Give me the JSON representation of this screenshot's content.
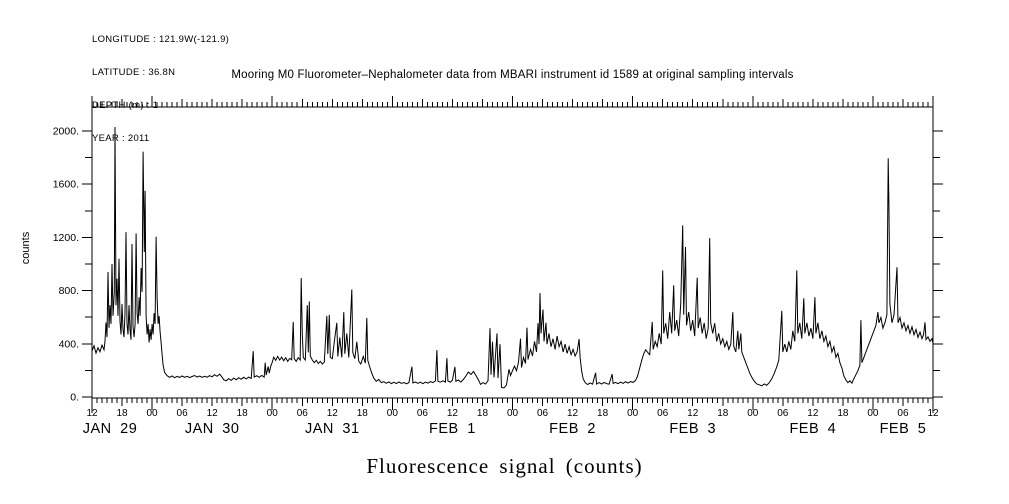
{
  "page": {
    "background": "#ffffff",
    "line_color": "#000000"
  },
  "info_block": {
    "lines": [
      "LONGITUDE : 121.9W(-121.9)",
      "LATITUDE : 36.8N",
      "DEPTH (m) : 1",
      "YEAR : 2011"
    ]
  },
  "title": "Mooring M0 Fluorometer–Nephalometer data from MBARI instrument id 1589 at original sampling intervals",
  "chart_data": {
    "type": "line",
    "title": "Mooring M0 Fluorometer–Nephalometer data from MBARI instrument id 1589 at original sampling intervals",
    "ylabel": "counts",
    "xlabel": "Fluorescence signal (counts)",
    "grid": false,
    "x_axis": {
      "start": "JAN 29 12:00",
      "end": "FEB 5 12:00",
      "hours_range": [
        0,
        168
      ],
      "minor_tick_step_hours": 1,
      "labeled_tick_step_hours": 6,
      "hour_tick_labels": [
        "12",
        "18",
        "00",
        "06",
        "12",
        "18",
        "00",
        "06",
        "12",
        "18",
        "00",
        "06",
        "12",
        "18",
        "00",
        "06",
        "12",
        "18",
        "00",
        "06",
        "12",
        "18",
        "00",
        "06",
        "12",
        "18",
        "00",
        "06",
        "12"
      ],
      "day_labels": [
        {
          "label": "JAN 29",
          "center_hour": 3.6
        },
        {
          "label": "JAN 30",
          "center_hour": 24
        },
        {
          "label": "JAN 31",
          "center_hour": 48
        },
        {
          "label": "FEB 1",
          "center_hour": 72
        },
        {
          "label": "FEB 2",
          "center_hour": 96
        },
        {
          "label": "FEB 3",
          "center_hour": 120
        },
        {
          "label": "FEB 4",
          "center_hour": 144
        },
        {
          "label": "FEB 5",
          "center_hour": 162
        }
      ]
    },
    "y_axis": {
      "min": 0,
      "max": 2180,
      "labeled_ticks": [
        0,
        400,
        800,
        1200,
        1600,
        2000
      ],
      "minor_tick_step": 200,
      "tick_label_suffix": "."
    },
    "series": [
      {
        "name": "fluorescence_counts",
        "color": "#000000",
        "points_hour_value": [
          0,
          345,
          0.4,
          385,
          0.8,
          330,
          1.2,
          370,
          1.6,
          340,
          2,
          390,
          2.4,
          355,
          2.6,
          420,
          2.8,
          560,
          3,
          450,
          3.2,
          940,
          3.4,
          520,
          3.6,
          690,
          3.8,
          550,
          4,
          1000,
          4.2,
          610,
          4.45,
          790,
          4.6,
          2030,
          4.8,
          690,
          5,
          890,
          5.2,
          610,
          5.4,
          1040,
          5.6,
          570,
          5.8,
          470,
          6,
          700,
          6.2,
          510,
          6.4,
          450,
          6.6,
          630,
          6.8,
          1240,
          7,
          550,
          7.2,
          470,
          7.4,
          690,
          7.6,
          510,
          7.8,
          430,
          8,
          1150,
          8.2,
          530,
          8.4,
          450,
          8.6,
          550,
          8.8,
          1230,
          9,
          630,
          9.2,
          550,
          9.4,
          750,
          9.6,
          610,
          9.8,
          970,
          10,
          790,
          10.2,
          1845,
          10.45,
          1090,
          10.6,
          1550,
          10.8,
          610,
          11,
          470,
          11.2,
          550,
          11.4,
          410,
          11.6,
          510,
          11.8,
          430,
          12,
          550,
          12.2,
          470,
          12.4,
          630,
          12.6,
          550,
          12.8,
          1205,
          13,
          750,
          13.2,
          550,
          13.4,
          610,
          13.6,
          490,
          13.8,
          410,
          14,
          320,
          14.2,
          240,
          14.5,
          185,
          15,
          160,
          15.5,
          148,
          16,
          158,
          16.5,
          145,
          17,
          155,
          17.5,
          147,
          18,
          158,
          18.5,
          148,
          19,
          156,
          19.5,
          146,
          20,
          154,
          20.5,
          162,
          21,
          150,
          21.5,
          158,
          22,
          148,
          22.5,
          156,
          23,
          149,
          23.5,
          160,
          24,
          152,
          24.5,
          168,
          25,
          156,
          25.5,
          172,
          26,
          148,
          26.3,
          130,
          26.8,
          122,
          27.3,
          138,
          27.8,
          125,
          28.3,
          142,
          28.8,
          130,
          29.3,
          145,
          29.8,
          133,
          30.3,
          148,
          30.8,
          136,
          31.3,
          150,
          31.8,
          140,
          32.2,
          345,
          32.4,
          150,
          32.9,
          160,
          33.4,
          148,
          33.9,
          162,
          34.4,
          150,
          34.6,
          258,
          34.8,
          165,
          35.2,
          230,
          35.4,
          180,
          35.7,
          230,
          36,
          260,
          36.3,
          300,
          36.7,
          275,
          37.1,
          305,
          37.5,
          278,
          37.9,
          300,
          38.3,
          272,
          38.7,
          296,
          39.1,
          268,
          39.5,
          290,
          39.9,
          280,
          40.2,
          565,
          40.4,
          288,
          40.8,
          268,
          41.2,
          296,
          41.6,
          278,
          41.8,
          895,
          42,
          470,
          42.2,
          298,
          42.6,
          278,
          43,
          690,
          43.2,
          335,
          43.4,
          718,
          43.6,
          308,
          44,
          278,
          44.4,
          258,
          44.8,
          276,
          45.2,
          252,
          45.6,
          268,
          46,
          248,
          46.4,
          262,
          46.9,
          610,
          47.1,
          325,
          47.4,
          618,
          47.6,
          298,
          48,
          288,
          48.4,
          415,
          48.9,
          558,
          49.1,
          305,
          49.5,
          448,
          49.9,
          298,
          50.3,
          638,
          50.5,
          325,
          50.9,
          478,
          51.3,
          298,
          51.9,
          808,
          52.1,
          335,
          52.5,
          288,
          52.9,
          415,
          53.3,
          268,
          53.7,
          248,
          54.2,
          305,
          54.6,
          255,
          54.9,
          595,
          55.1,
          275,
          55.5,
          225,
          55.9,
          178,
          56.3,
          142,
          56.8,
          118,
          57.3,
          132,
          57.8,
          108,
          58.3,
          115,
          58.8,
          103,
          59.3,
          114,
          59.8,
          100,
          60.3,
          111,
          60.8,
          101,
          61.3,
          113,
          61.8,
          103,
          62.3,
          109,
          62.8,
          99,
          63.3,
          108,
          63.9,
          228,
          64.1,
          106,
          64.6,
          113,
          65.1,
          103,
          65.6,
          111,
          66.1,
          100,
          66.6,
          112,
          67.1,
          104,
          67.6,
          116,
          68.1,
          108,
          68.6,
          120,
          68.9,
          352,
          69.1,
          118,
          69.6,
          112,
          70.1,
          122,
          70.6,
          112,
          70.9,
          292,
          71.1,
          120,
          71.6,
          112,
          72,
          126,
          72.5,
          226,
          72.7,
          118,
          73.2,
          128,
          73.7,
          112,
          74.2,
          132,
          74.7,
          158,
          75.2,
          188,
          75.7,
          170,
          76.2,
          192,
          76.7,
          162,
          77.2,
          128,
          77.6,
          95,
          78.1,
          108,
          78.6,
          98,
          79.1,
          122,
          79.5,
          518,
          79.7,
          168,
          80,
          415,
          80.3,
          148,
          80.9,
          478,
          81.1,
          142,
          81.5,
          398,
          81.8,
          72,
          82.3,
          68,
          82.8,
          92,
          83.3,
          208,
          83.6,
          162,
          84,
          198,
          84.4,
          232,
          84.8,
          198,
          85.2,
          262,
          85.6,
          438,
          85.8,
          222,
          86.2,
          298,
          86.6,
          252,
          86.9,
          522,
          87.1,
          282,
          87.6,
          358,
          88,
          308,
          88.4,
          418,
          88.8,
          338,
          89.1,
          555,
          89.3,
          398,
          89.5,
          782,
          89.7,
          478,
          90.1,
          658,
          90.3,
          418,
          90.7,
          558,
          90.9,
          398,
          91.3,
          478,
          91.7,
          378,
          92.1,
          438,
          92.5,
          358,
          92.9,
          458,
          93.3,
          378,
          93.7,
          418,
          94.1,
          338,
          94.5,
          398,
          94.9,
          328,
          95.3,
          378,
          95.7,
          318,
          96.1,
          358,
          96.5,
          308,
          96.9,
          338,
          97.3,
          436,
          97.5,
          298,
          97.8,
          198,
          98.1,
          138,
          98.5,
          108,
          99,
          94,
          99.5,
          106,
          100,
          96,
          100.6,
          182,
          100.8,
          98,
          101.3,
          108,
          101.8,
          98,
          102.3,
          110,
          102.8,
          100,
          103.3,
          96,
          103.9,
          172,
          104.1,
          102,
          104.6,
          110,
          105.1,
          100,
          105.6,
          112,
          106.1,
          102,
          106.6,
          115,
          107.1,
          105,
          107.6,
          116,
          108.1,
          110,
          108.6,
          125,
          109,
          158,
          109.4,
          218,
          109.8,
          275,
          110.2,
          325,
          110.6,
          355,
          111,
          335,
          111.4,
          318,
          111.9,
          565,
          112.1,
          358,
          112.5,
          418,
          112.9,
          378,
          113.3,
          478,
          113.7,
          398,
          114,
          952,
          114.2,
          478,
          114.6,
          555,
          115,
          438,
          115.4,
          638,
          115.8,
          478,
          116.2,
          840,
          116.4,
          498,
          116.8,
          578,
          117.2,
          458,
          117.6,
          698,
          118,
          1290,
          118.2,
          618,
          118.55,
          1128,
          118.75,
          538,
          119.2,
          638,
          119.6,
          498,
          120,
          578,
          120.4,
          458,
          120.9,
          898,
          121.1,
          518,
          121.5,
          598,
          121.9,
          478,
          122.3,
          558,
          122.7,
          438,
          123.1,
          518,
          123.4,
          1195,
          123.6,
          558,
          124,
          478,
          124.4,
          555,
          124.8,
          418,
          125.2,
          478,
          125.6,
          398,
          126,
          438,
          126.4,
          378,
          126.8,
          418,
          127.2,
          358,
          127.6,
          398,
          128,
          638,
          128.2,
          378,
          128.6,
          338,
          129,
          498,
          129.2,
          358,
          129.6,
          478,
          129.8,
          338,
          130.2,
          298,
          130.6,
          258,
          131,
          218,
          131.4,
          178,
          131.8,
          148,
          132.3,
          118,
          132.8,
          98,
          133.3,
          92,
          133.8,
          84,
          134.3,
          98,
          134.8,
          88,
          135.3,
          108,
          135.8,
          138,
          136.3,
          178,
          136.8,
          228,
          137.2,
          278,
          137.8,
          648,
          138,
          338,
          138.4,
          398,
          138.8,
          338,
          139.2,
          418,
          139.6,
          358,
          140,
          498,
          140.4,
          418,
          140.8,
          952,
          141,
          478,
          141.4,
          558,
          141.8,
          438,
          142.2,
          742,
          142.4,
          478,
          142.8,
          558,
          143.2,
          458,
          143.6,
          518,
          144,
          438,
          144.4,
          750,
          144.6,
          478,
          145,
          558,
          145.4,
          438,
          145.8,
          498,
          146.2,
          418,
          146.6,
          458,
          147,
          378,
          147.4,
          418,
          147.8,
          338,
          148.2,
          378,
          148.6,
          298,
          149,
          328,
          149.4,
          258,
          149.8,
          218,
          150.2,
          158,
          150.6,
          128,
          151,
          108,
          151.4,
          122,
          151.8,
          104,
          152.2,
          138,
          152.6,
          168,
          153,
          198,
          153.4,
          238,
          153.6,
          578,
          153.8,
          258,
          154.2,
          298,
          154.6,
          338,
          155,
          378,
          155.4,
          418,
          155.8,
          458,
          156.2,
          498,
          156.6,
          538,
          157,
          638,
          157.2,
          558,
          157.6,
          598,
          158,
          518,
          158.4,
          558,
          158.8,
          618,
          159.05,
          1795,
          159.2,
          1455,
          159.4,
          698,
          159.8,
          558,
          160.2,
          618,
          160.8,
          975,
          161,
          558,
          161.4,
          598,
          161.8,
          518,
          162.2,
          558,
          162.6,
          498,
          163,
          538,
          163.4,
          478,
          163.8,
          528,
          164.2,
          468,
          164.6,
          508,
          165,
          448,
          165.4,
          488,
          165.8,
          438,
          166.1,
          468,
          166.4,
          562,
          166.6,
          432,
          167,
          452,
          167.4,
          418,
          167.8,
          438,
          168,
          402
        ]
      }
    ]
  }
}
